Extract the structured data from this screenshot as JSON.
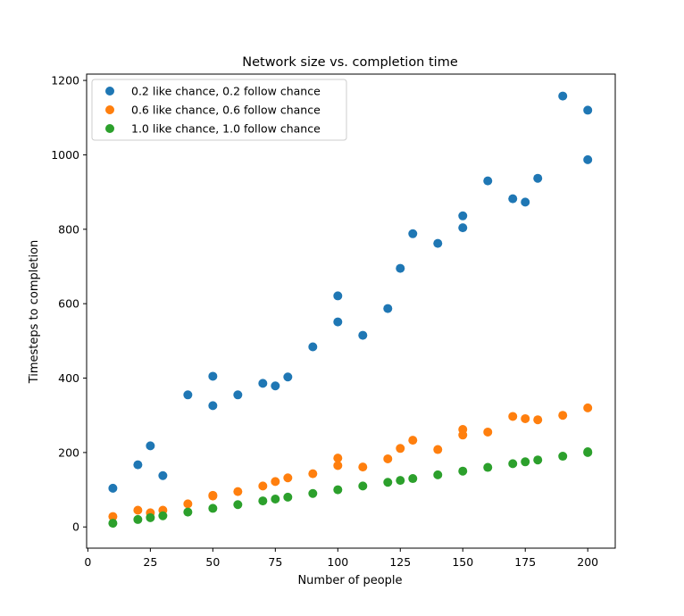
{
  "chart_data": {
    "type": "scatter",
    "title": "Network size vs. completion time",
    "xlabel": "Number of people",
    "ylabel": "Timesteps to completion",
    "xlim": [
      -0.5,
      211
    ],
    "ylim": [
      -57,
      1217
    ],
    "xticks": [
      0,
      25,
      50,
      75,
      100,
      125,
      150,
      175,
      200
    ],
    "yticks": [
      0,
      200,
      400,
      600,
      800,
      1000,
      1200
    ],
    "grid": false,
    "legend_position": "top-left",
    "series": [
      {
        "name": "0.2 like chance, 0.2 follow chance",
        "color": "#1f77b4",
        "points": [
          [
            10,
            104
          ],
          [
            20,
            167
          ],
          [
            25,
            218
          ],
          [
            30,
            138
          ],
          [
            40,
            355
          ],
          [
            50,
            405
          ],
          [
            50,
            326
          ],
          [
            60,
            355
          ],
          [
            70,
            386
          ],
          [
            75,
            379
          ],
          [
            80,
            403
          ],
          [
            90,
            484
          ],
          [
            100,
            621
          ],
          [
            100,
            551
          ],
          [
            110,
            515
          ],
          [
            120,
            587
          ],
          [
            125,
            695
          ],
          [
            130,
            788
          ],
          [
            140,
            762
          ],
          [
            150,
            836
          ],
          [
            150,
            804
          ],
          [
            160,
            930
          ],
          [
            170,
            882
          ],
          [
            175,
            873
          ],
          [
            180,
            937
          ],
          [
            190,
            1158
          ],
          [
            200,
            1120
          ],
          [
            200,
            987
          ]
        ]
      },
      {
        "name": "0.6 like chance, 0.6 follow chance",
        "color": "#ff7f0e",
        "points": [
          [
            10,
            28
          ],
          [
            20,
            45
          ],
          [
            25,
            38
          ],
          [
            30,
            45
          ],
          [
            40,
            62
          ],
          [
            50,
            85
          ],
          [
            50,
            83
          ],
          [
            60,
            95
          ],
          [
            70,
            110
          ],
          [
            75,
            122
          ],
          [
            80,
            132
          ],
          [
            90,
            143
          ],
          [
            100,
            185
          ],
          [
            100,
            165
          ],
          [
            110,
            161
          ],
          [
            120,
            183
          ],
          [
            125,
            211
          ],
          [
            130,
            233
          ],
          [
            140,
            208
          ],
          [
            150,
            262
          ],
          [
            150,
            247
          ],
          [
            160,
            255
          ],
          [
            170,
            297
          ],
          [
            175,
            291
          ],
          [
            180,
            288
          ],
          [
            190,
            300
          ],
          [
            200,
            320
          ]
        ]
      },
      {
        "name": "1.0 like chance, 1.0 follow chance",
        "color": "#2ca02c",
        "points": [
          [
            10,
            10
          ],
          [
            20,
            20
          ],
          [
            25,
            25
          ],
          [
            30,
            30
          ],
          [
            40,
            40
          ],
          [
            50,
            50
          ],
          [
            60,
            60
          ],
          [
            70,
            70
          ],
          [
            75,
            75
          ],
          [
            80,
            80
          ],
          [
            90,
            90
          ],
          [
            100,
            100
          ],
          [
            110,
            110
          ],
          [
            120,
            120
          ],
          [
            125,
            125
          ],
          [
            130,
            130
          ],
          [
            140,
            140
          ],
          [
            150,
            150
          ],
          [
            160,
            160
          ],
          [
            170,
            170
          ],
          [
            175,
            175
          ],
          [
            180,
            180
          ],
          [
            190,
            190
          ],
          [
            200,
            200
          ],
          [
            200,
            202
          ]
        ]
      }
    ]
  }
}
